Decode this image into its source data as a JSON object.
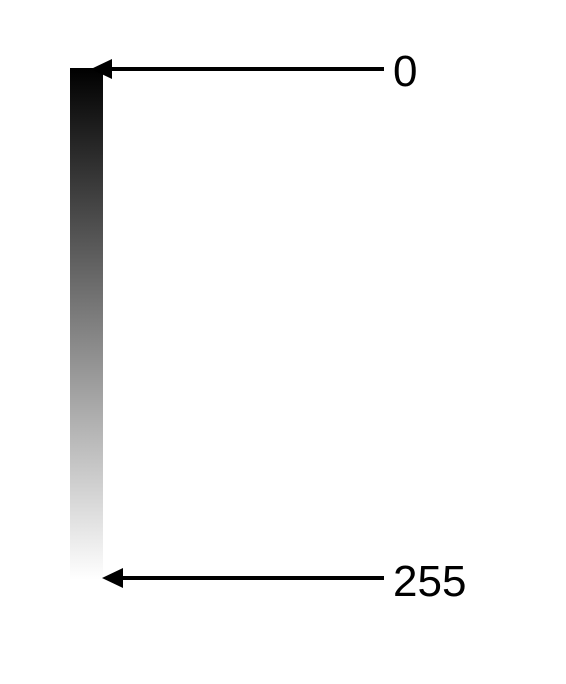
{
  "gradient": {
    "start_color": "#000000",
    "end_color": "#ffffff"
  },
  "labels": {
    "top": "0",
    "bottom": "255"
  },
  "arrow_color": "#000000"
}
